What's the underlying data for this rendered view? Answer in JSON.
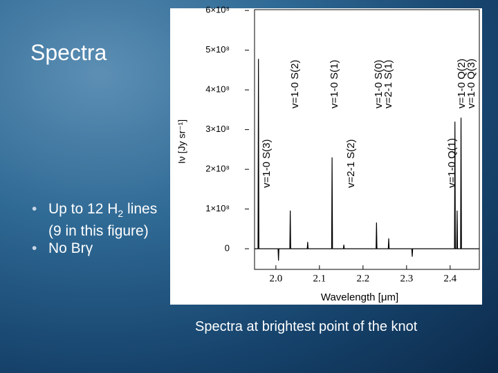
{
  "slide": {
    "title": "Spectra",
    "bullets": [
      {
        "parts": [
          "Up to 12 H",
          "2",
          " lines (9 in this figure)"
        ]
      },
      {
        "parts": [
          "No Br",
          "γ"
        ]
      }
    ],
    "caption": "Spectra at brightest point of the knot"
  },
  "chart_data": {
    "type": "line",
    "x_label": "Wavelength [μm]",
    "y_label": "Iν [Jy sr⁻¹]",
    "xlim": [
      1.951,
      2.467
    ],
    "ylim": [
      -52000000,
      602000000
    ],
    "xticks": [
      {
        "value": 2,
        "label": "2.0"
      },
      2.1,
      2.2,
      2.3,
      2.4
    ],
    "yticks": [
      0,
      {
        "value": 100000000,
        "label": "1×10⁸"
      },
      {
        "value": 200000000,
        "label": "2×10⁸"
      },
      {
        "value": 300000000,
        "label": "3×10⁸"
      },
      {
        "value": 400000000,
        "label": "4×10⁸"
      },
      {
        "value": 500000000,
        "label": "5×10⁸"
      },
      {
        "value": 600000000,
        "label": "6×10⁸"
      }
    ],
    "series": [
      {
        "color": "#000000",
        "x": [
          1.951,
          1.959,
          1.96,
          1.961,
          2.005,
          2.006,
          2.007,
          2.032,
          2.033,
          2.034,
          2.072,
          2.073,
          2.074,
          2.128,
          2.129,
          2.13,
          2.155,
          2.156,
          2.157,
          2.23,
          2.231,
          2.232,
          2.258,
          2.259,
          2.26,
          2.312,
          2.313,
          2.314,
          2.41,
          2.411,
          2.412,
          2.415,
          2.416,
          2.417,
          2.424,
          2.425,
          2.426,
          2.467
        ],
        "values": [
          0,
          0,
          478000000,
          0,
          0,
          -30000000,
          0,
          0,
          96000000,
          0,
          0,
          17000000,
          0,
          0,
          230000000,
          0,
          0,
          10000000,
          0,
          0,
          66000000,
          0,
          0,
          26000000,
          0,
          0,
          -20000000,
          0,
          0,
          320000000,
          0,
          0,
          96000000,
          0,
          0,
          330000000,
          0,
          0
        ]
      }
    ],
    "annotations": [
      "v=1-0 S(3)",
      "v=1-0 S(2)",
      "v=1-0 S(1)",
      "v=2-1 S(2)",
      "v=1-0 S(0)",
      "v=2-1 S(1)",
      "v=1-0 Q(1)",
      "v=1-0 Q(2)",
      "v=1-0 Q(3)"
    ]
  }
}
